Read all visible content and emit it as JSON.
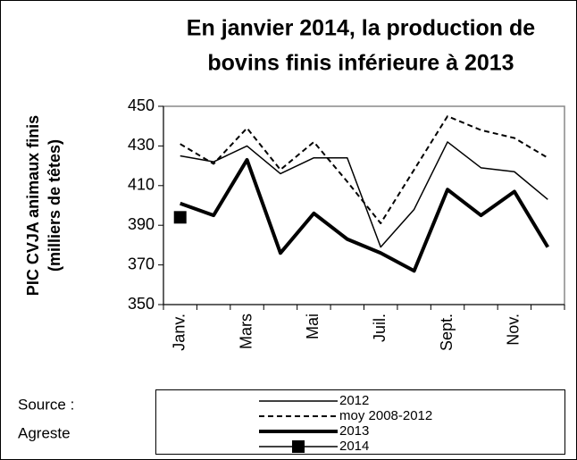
{
  "chart_data": {
    "type": "line",
    "title": [
      "En janvier 2014, la production de",
      "bovins finis inférieure à 2013"
    ],
    "y_label": [
      "PIC CVJA animaux finis",
      "(milliers de têtes)"
    ],
    "source": [
      "Source :",
      "Agreste"
    ],
    "categories": [
      "Janv.",
      null,
      "Mars",
      null,
      "Mai",
      null,
      "Juil.",
      null,
      "Sept.",
      null,
      "Nov.",
      null
    ],
    "ylim": [
      350,
      450
    ],
    "yticks": [
      350,
      370,
      390,
      410,
      430,
      450
    ],
    "series": [
      {
        "name": "2012",
        "color": "#000000",
        "width": 1.5,
        "dash": false,
        "marker": false,
        "values": [
          425,
          422,
          430,
          416,
          424,
          424,
          379,
          398,
          432,
          419,
          417,
          403
        ]
      },
      {
        "name": "moy 2008-2012",
        "color": "#000000",
        "width": 2,
        "dash": true,
        "marker": false,
        "values": [
          431,
          421,
          439,
          418,
          432,
          412,
          391,
          418,
          445,
          438,
          434,
          424
        ]
      },
      {
        "name": "2013",
        "color": "#000000",
        "width": 4,
        "dash": false,
        "marker": false,
        "values": [
          401,
          395,
          423,
          376,
          396,
          383,
          376,
          367,
          408,
          395,
          407,
          379
        ]
      },
      {
        "name": "2014",
        "color": "#000000",
        "width": 1.5,
        "dash": false,
        "marker": true,
        "values": [
          394,
          null,
          null,
          null,
          null,
          null,
          null,
          null,
          null,
          null,
          null,
          null
        ]
      }
    ]
  }
}
